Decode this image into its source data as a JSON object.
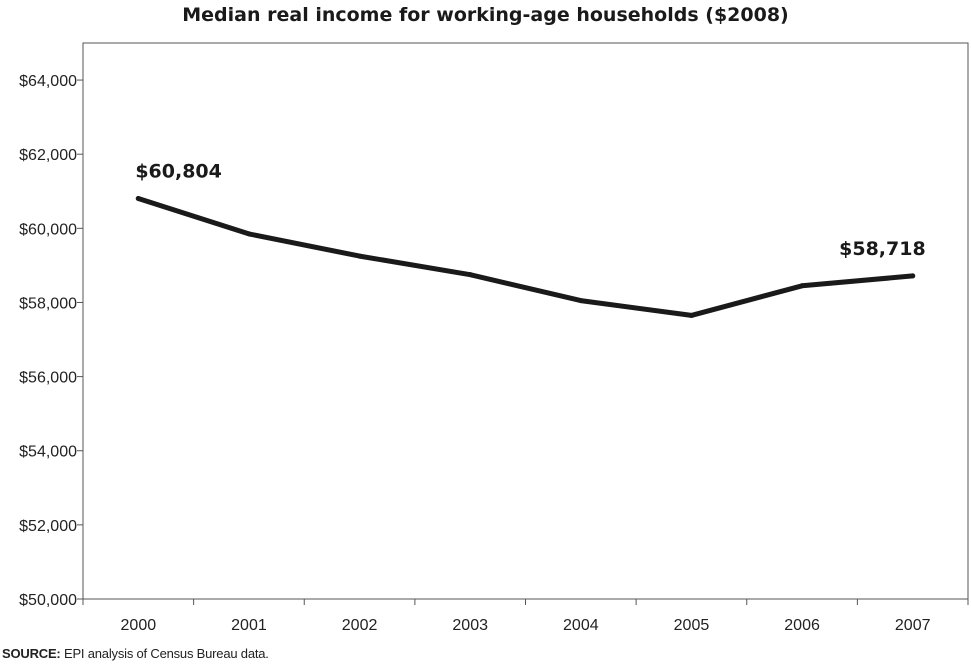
{
  "chart_data": {
    "type": "line",
    "title": "Median real income for working-age households ($2008)",
    "xlabel": "",
    "ylabel": "",
    "categories": [
      "2000",
      "2001",
      "2002",
      "2003",
      "2004",
      "2005",
      "2006",
      "2007"
    ],
    "series": [
      {
        "values": [
          60804,
          59850,
          59250,
          58750,
          58050,
          57650,
          58450,
          58718
        ]
      }
    ],
    "ylim": [
      50000,
      65000
    ],
    "yticks": [
      50000,
      52000,
      54000,
      56000,
      58000,
      60000,
      62000,
      64000
    ],
    "ytick_labels": [
      "$50,000",
      "$52,000",
      "$54,000",
      "$56,000",
      "$58,000",
      "$60,000",
      "$62,000",
      "$64,000"
    ],
    "annotations": [
      {
        "category": "2000",
        "value": 60804,
        "text": "$60,804"
      },
      {
        "category": "2007",
        "value": 58718,
        "text": "$58,718"
      }
    ],
    "grid": false,
    "line_color": "#1a1a1a"
  },
  "source": {
    "label": "SOURCE:",
    "text": "EPI analysis of  Census Bureau data."
  }
}
